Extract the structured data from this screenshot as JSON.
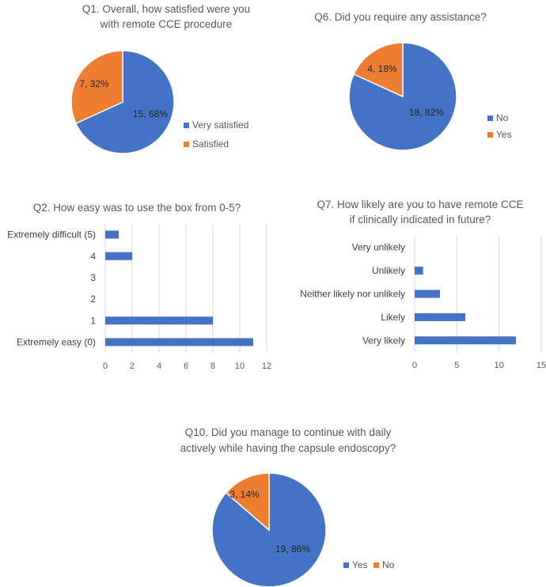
{
  "colors": {
    "blue": "#4472c4",
    "orange": "#ed7d31",
    "grid": "#d9d9d9"
  },
  "chart_data": [
    {
      "id": "q1",
      "type": "pie",
      "title_lines": [
        "Q1. Overall, how satisfied were you",
        "with remote CCE procedure"
      ],
      "slices": [
        {
          "name": "Very satisfied",
          "value": 15,
          "percent": 68,
          "label": "15, 68%",
          "color": "#4472c4"
        },
        {
          "name": "Satisfied",
          "value": 7,
          "percent": 32,
          "label": "7, 32%",
          "color": "#ed7d31"
        }
      ],
      "legend_position": "right"
    },
    {
      "id": "q6",
      "type": "pie",
      "title_lines": [
        "Q6. Did you require any assistance?"
      ],
      "slices": [
        {
          "name": "No",
          "value": 18,
          "percent": 82,
          "label": "18, 82%",
          "color": "#4472c4"
        },
        {
          "name": "Yes",
          "value": 4,
          "percent": 18,
          "label": "4, 18%",
          "color": "#ed7d31"
        }
      ],
      "legend_position": "right"
    },
    {
      "id": "q2",
      "type": "bar",
      "orientation": "horizontal",
      "title_lines": [
        "Q2. How easy was to use the box from 0-5?"
      ],
      "categories": [
        "Extremely difficult (5)",
        "4",
        "3",
        "2",
        "1",
        "Extremely easy (0)"
      ],
      "values": [
        1,
        2,
        0,
        0,
        8,
        11
      ],
      "xlim": [
        0,
        12
      ],
      "xticks": [
        "0",
        "2",
        "4",
        "6",
        "8",
        "10",
        "12"
      ],
      "grid": true
    },
    {
      "id": "q7",
      "type": "bar",
      "orientation": "horizontal",
      "title_lines": [
        "Q7. How likely are you to have remote CCE",
        "if clinically indicated in future?"
      ],
      "categories": [
        "Very unlikely",
        "Unlikely",
        "Neither likely nor unlikely",
        "Likely",
        "Very likely"
      ],
      "values": [
        0,
        1,
        3,
        6,
        12
      ],
      "xlim": [
        0,
        15
      ],
      "xticks": [
        "0",
        "5",
        "10",
        "15"
      ],
      "grid": true
    },
    {
      "id": "q10",
      "type": "pie",
      "title_lines": [
        "Q10. Did you manage to continue with daily",
        "actively while having the capsule endoscopy?"
      ],
      "slices": [
        {
          "name": "Yes",
          "value": 19,
          "percent": 86,
          "label": "19, 86%",
          "color": "#4472c4"
        },
        {
          "name": "No",
          "value": 3,
          "percent": 14,
          "label": "3, 14%",
          "color": "#ed7d31"
        }
      ],
      "legend_position": "bottom-right"
    }
  ]
}
